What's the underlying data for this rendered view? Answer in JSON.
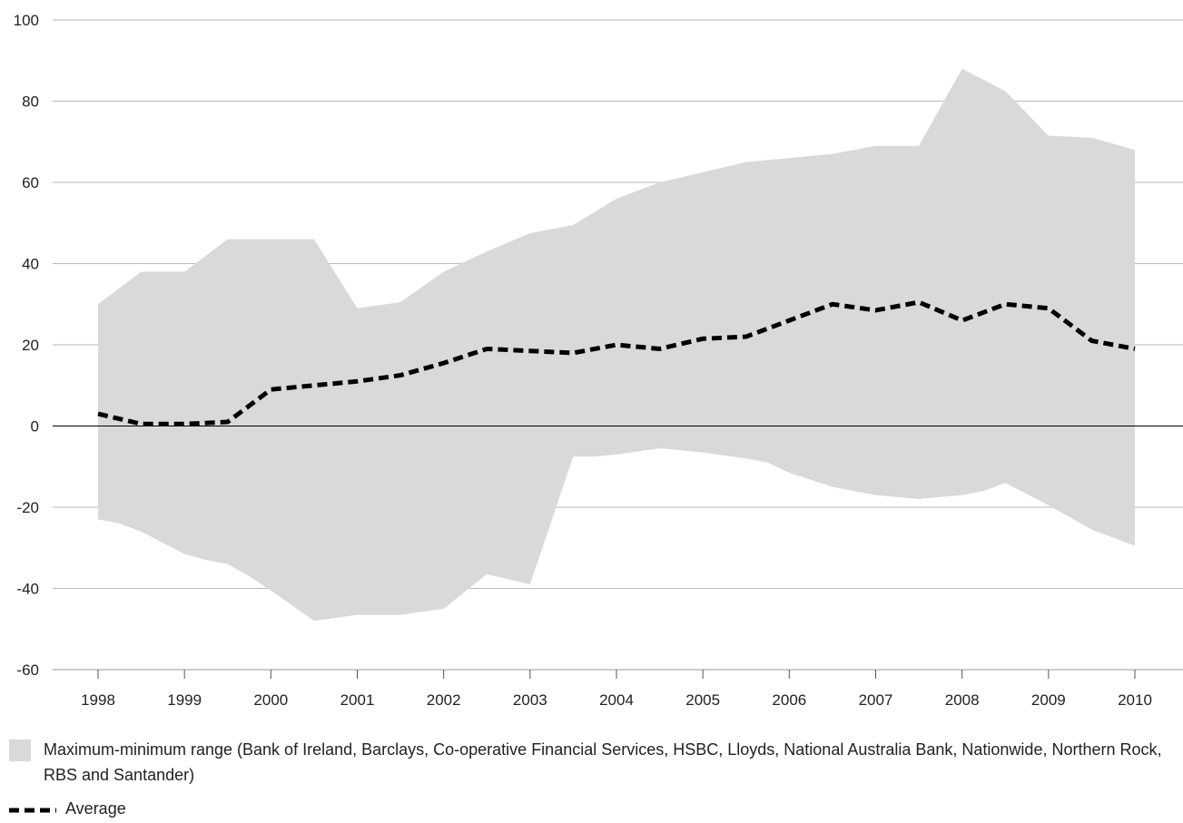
{
  "chart_data": {
    "type": "area",
    "title": "",
    "xlabel": "",
    "ylabel": "",
    "ylim": [
      -60,
      100
    ],
    "yticks": [
      100,
      80,
      60,
      40,
      20,
      0,
      -20,
      -40,
      -60
    ],
    "xlim": [
      1998,
      2010
    ],
    "xticks": [
      "1998",
      "1999",
      "2000",
      "2001",
      "2002",
      "2003",
      "2004",
      "2005",
      "2006",
      "2007",
      "2008",
      "2009",
      "2010"
    ],
    "grid": true,
    "legend_position": "bottom-left",
    "colors": {
      "range": "#d9d9d9",
      "average": "#000000",
      "grid": "#bbbbbb",
      "zero_line": "#000000"
    },
    "series": [
      {
        "name": "Maximum-minimum range (Bank of Ireland, Barclays, Co-operative Financial Services, HSBC, Lloyds, National Australia Bank, Nationwide, Northern Rock, RBS and Santander)",
        "kind": "range",
        "upper": [
          [
            1998,
            30
          ],
          [
            1998.5,
            38
          ],
          [
            1999,
            38
          ],
          [
            1999.5,
            46
          ],
          [
            2000,
            46
          ],
          [
            2000.5,
            46
          ],
          [
            2001,
            29
          ],
          [
            2001.5,
            30.5
          ],
          [
            2002,
            38
          ],
          [
            2002.5,
            43
          ],
          [
            2003,
            47.5
          ],
          [
            2003.5,
            49.5
          ],
          [
            2004,
            56
          ],
          [
            2004.5,
            60
          ],
          [
            2005,
            62.5
          ],
          [
            2005.5,
            65
          ],
          [
            2006,
            66
          ],
          [
            2006.5,
            67
          ],
          [
            2007,
            69
          ],
          [
            2007.5,
            69
          ],
          [
            2008,
            88
          ],
          [
            2008.5,
            82.5
          ],
          [
            2009,
            71.5
          ],
          [
            2009.5,
            71
          ],
          [
            2010,
            68
          ]
        ],
        "lower": [
          [
            1998,
            -23
          ],
          [
            1998.25,
            -24
          ],
          [
            1998.5,
            -26
          ],
          [
            1999,
            -31.5
          ],
          [
            1999.25,
            -33
          ],
          [
            1999.5,
            -34
          ],
          [
            1999.75,
            -37
          ],
          [
            2000,
            -40.5
          ],
          [
            2000.5,
            -48
          ],
          [
            2001,
            -46.5
          ],
          [
            2001.5,
            -46.5
          ],
          [
            2002,
            -45
          ],
          [
            2002.5,
            -36.5
          ],
          [
            2003,
            -39
          ],
          [
            2003.5,
            -7.5
          ],
          [
            2003.75,
            -7.5
          ],
          [
            2004,
            -7
          ],
          [
            2004.5,
            -5.5
          ],
          [
            2005,
            -6.5
          ],
          [
            2005.5,
            -8
          ],
          [
            2005.75,
            -9
          ],
          [
            2006,
            -11.5
          ],
          [
            2006.5,
            -15
          ],
          [
            2007,
            -17
          ],
          [
            2007.5,
            -18
          ],
          [
            2008,
            -17
          ],
          [
            2008.25,
            -16
          ],
          [
            2008.5,
            -14
          ],
          [
            2009,
            -19.5
          ],
          [
            2009.5,
            -25.5
          ],
          [
            2010,
            -29.5
          ]
        ]
      },
      {
        "name": "Average",
        "kind": "line",
        "points": [
          [
            1998,
            3
          ],
          [
            1998.5,
            0.5
          ],
          [
            1999,
            0.5
          ],
          [
            1999.5,
            1
          ],
          [
            2000,
            9
          ],
          [
            2000.5,
            10
          ],
          [
            2001,
            11
          ],
          [
            2001.5,
            12.5
          ],
          [
            2002,
            15.5
          ],
          [
            2002.5,
            19
          ],
          [
            2003,
            18.5
          ],
          [
            2003.5,
            18
          ],
          [
            2004,
            20
          ],
          [
            2004.5,
            19
          ],
          [
            2005,
            21.5
          ],
          [
            2005.5,
            22
          ],
          [
            2006,
            26
          ],
          [
            2006.5,
            30
          ],
          [
            2007,
            28.5
          ],
          [
            2007.5,
            30.5
          ],
          [
            2008,
            26
          ],
          [
            2008.5,
            30
          ],
          [
            2009,
            29
          ],
          [
            2009.5,
            21
          ],
          [
            2010,
            19
          ]
        ]
      }
    ]
  },
  "legend": {
    "range_label": "Maximum-minimum range (Bank of Ireland, Barclays, Co-operative Financial Services, HSBC, Lloyds, National Australia Bank, Nationwide, Northern Rock, RBS and Santander)",
    "average_label": "Average"
  }
}
